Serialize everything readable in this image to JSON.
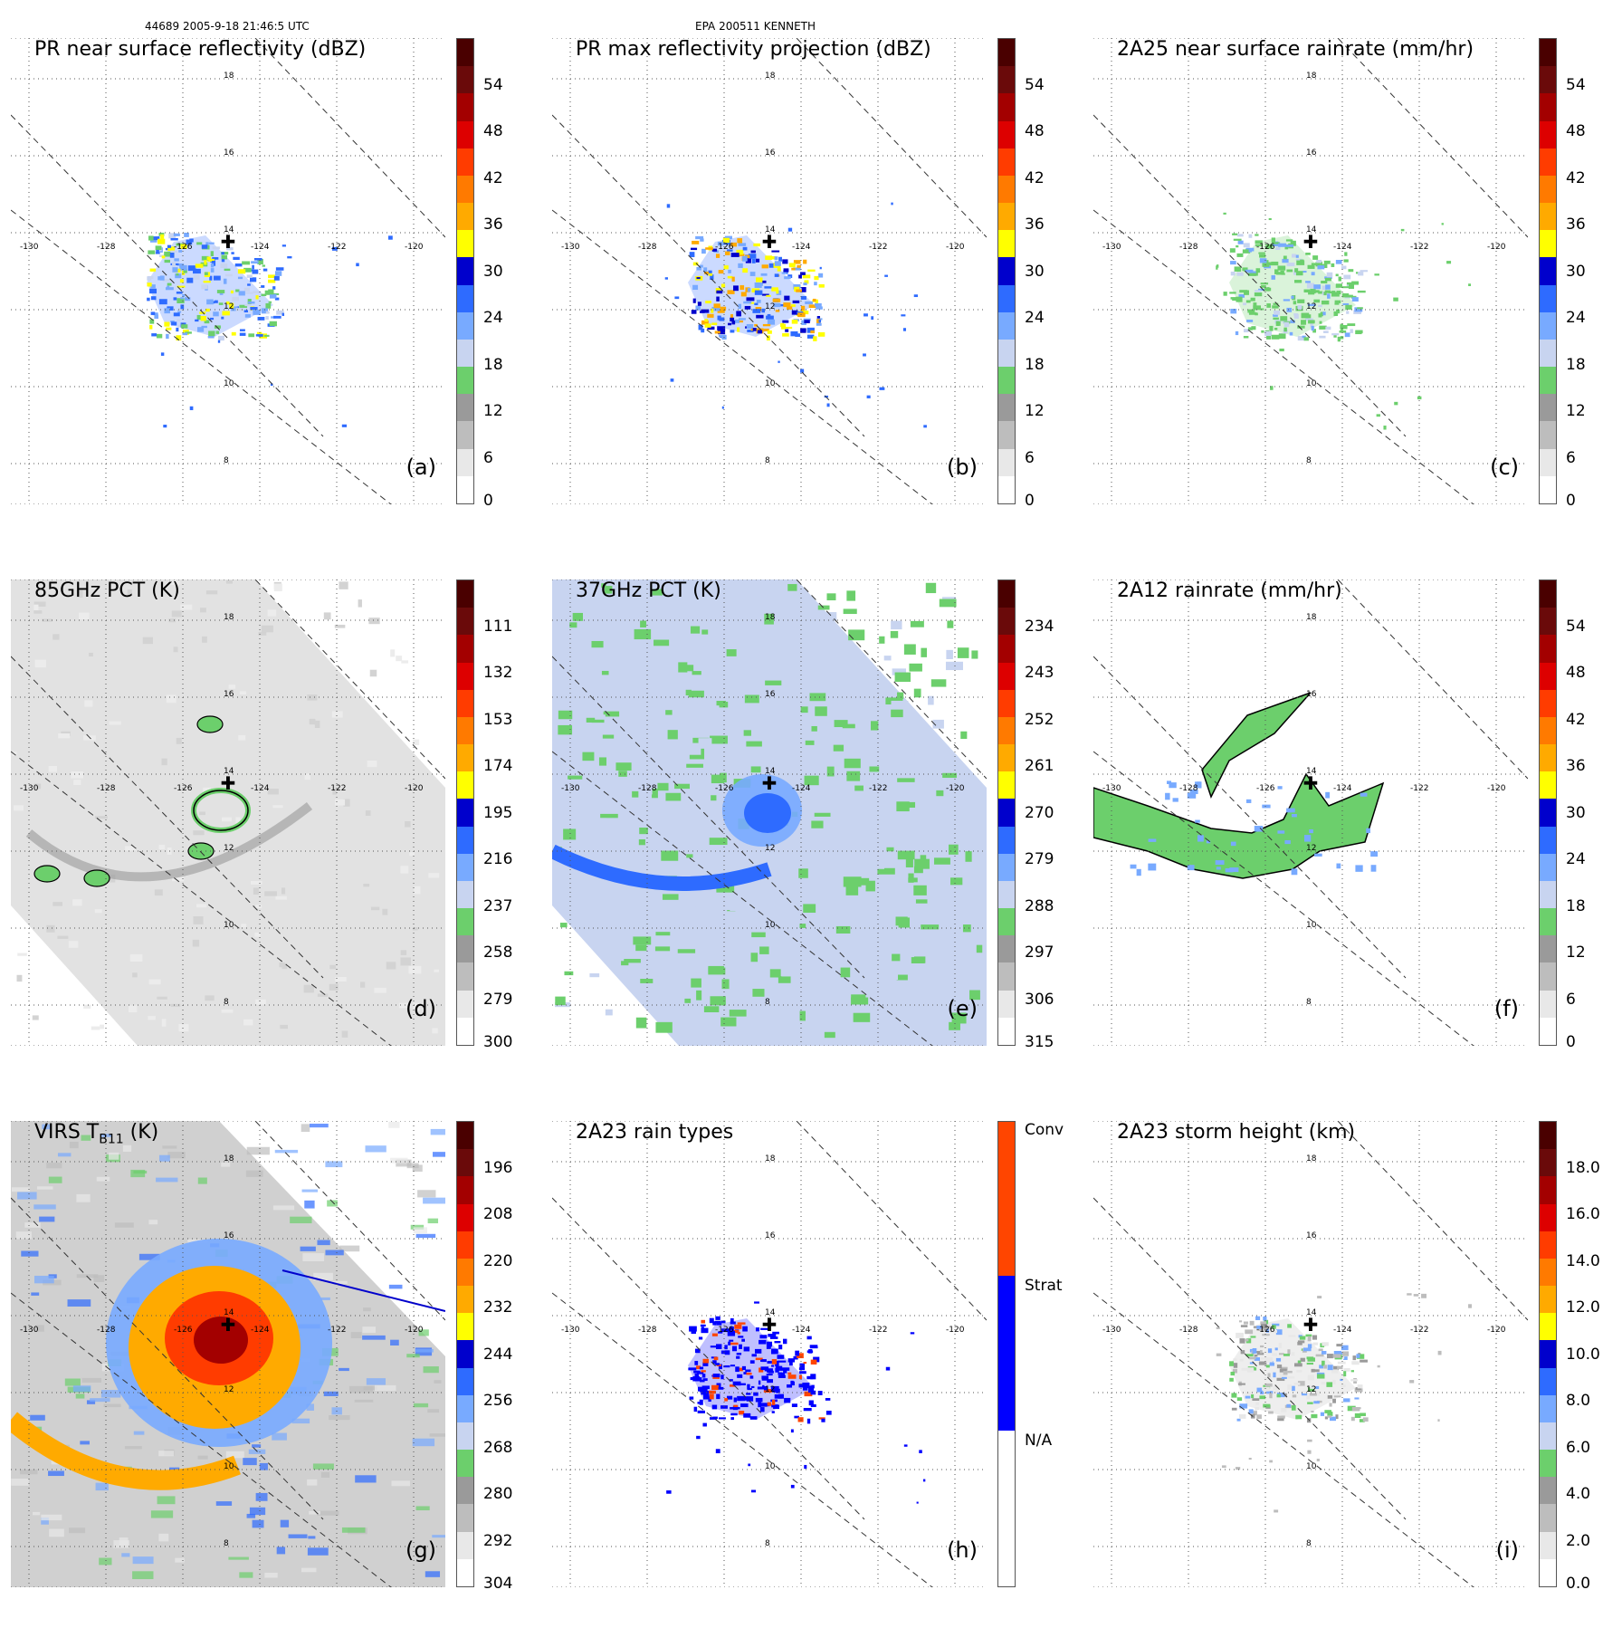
{
  "header": {
    "orbit_time": "44689 2005-9-18 21:46:5 UTC",
    "storm": "EPA 200511 KENNETH"
  },
  "lon_labels": [
    "-130",
    "-128",
    "-126",
    "-124",
    "-122",
    "-120"
  ],
  "lat_labels": [
    "18",
    "16",
    "14",
    "12",
    "10",
    "8"
  ],
  "panels": [
    {
      "id": "a",
      "title": "PR near surface reflectivity (dBZ)",
      "label": "(a)",
      "colorbar_ticks": [
        "54",
        "48",
        "42",
        "36",
        "30",
        "24",
        "18",
        "12",
        "6",
        "0"
      ],
      "style": "pr"
    },
    {
      "id": "b",
      "title": "PR max reflectivity projection (dBZ)",
      "label": "(b)",
      "colorbar_ticks": [
        "54",
        "48",
        "42",
        "36",
        "30",
        "24",
        "18",
        "12",
        "6",
        "0"
      ],
      "style": "prmax"
    },
    {
      "id": "c",
      "title": "2A25 near surface rainrate (mm/hr)",
      "label": "(c)",
      "colorbar_ticks": [
        "54",
        "48",
        "42",
        "36",
        "30",
        "24",
        "18",
        "12",
        "6",
        "0"
      ],
      "style": "rain25"
    },
    {
      "id": "d",
      "title": "85GHz PCT (K)",
      "label": "(d)",
      "colorbar_ticks": [
        "111",
        "132",
        "153",
        "174",
        "195",
        "216",
        "237",
        "258",
        "279",
        "300"
      ],
      "style": "pct85"
    },
    {
      "id": "e",
      "title": "37GHz PCT (K)",
      "label": "(e)",
      "colorbar_ticks": [
        "234",
        "243",
        "252",
        "261",
        "270",
        "279",
        "288",
        "297",
        "306",
        "315"
      ],
      "style": "pct37"
    },
    {
      "id": "f",
      "title": "2A12 rainrate (mm/hr)",
      "label": "(f)",
      "colorbar_ticks": [
        "54",
        "48",
        "42",
        "36",
        "30",
        "24",
        "18",
        "12",
        "6",
        "0"
      ],
      "style": "rain12"
    },
    {
      "id": "g",
      "title": "VIRS T",
      "title_sub": "B11",
      "title_unit": " (K)",
      "label": "(g)",
      "colorbar_ticks": [
        "196",
        "208",
        "220",
        "232",
        "244",
        "256",
        "268",
        "280",
        "292",
        "304"
      ],
      "style": "virs"
    },
    {
      "id": "h",
      "title": "2A23 rain types",
      "label": "(h)",
      "colorbar_ticks": [
        "Conv",
        "Strat",
        "N/A"
      ],
      "style": "types"
    },
    {
      "id": "i",
      "title": "2A23 storm height (km)",
      "label": "(i)",
      "colorbar_ticks": [
        "18.0",
        "16.0",
        "14.0",
        "12.0",
        "10.0",
        "8.0",
        "6.0",
        "4.0",
        "2.0",
        "0.0"
      ],
      "style": "height"
    }
  ],
  "colors": {
    "standard_scale": [
      "#ffffff",
      "#e8e8e8",
      "#bdbdbd",
      "#9a9a9a",
      "#6ccf6c",
      "#c8d4f0",
      "#78aaff",
      "#2e6bff",
      "#0000cc",
      "#ffff00",
      "#ffaa00",
      "#ff7a00",
      "#ff3c00",
      "#dd0000",
      "#a30000",
      "#6a0a0a",
      "#4a0000"
    ],
    "types_scale": [
      "#ffffff",
      "#0000ff",
      "#ff4500"
    ]
  }
}
